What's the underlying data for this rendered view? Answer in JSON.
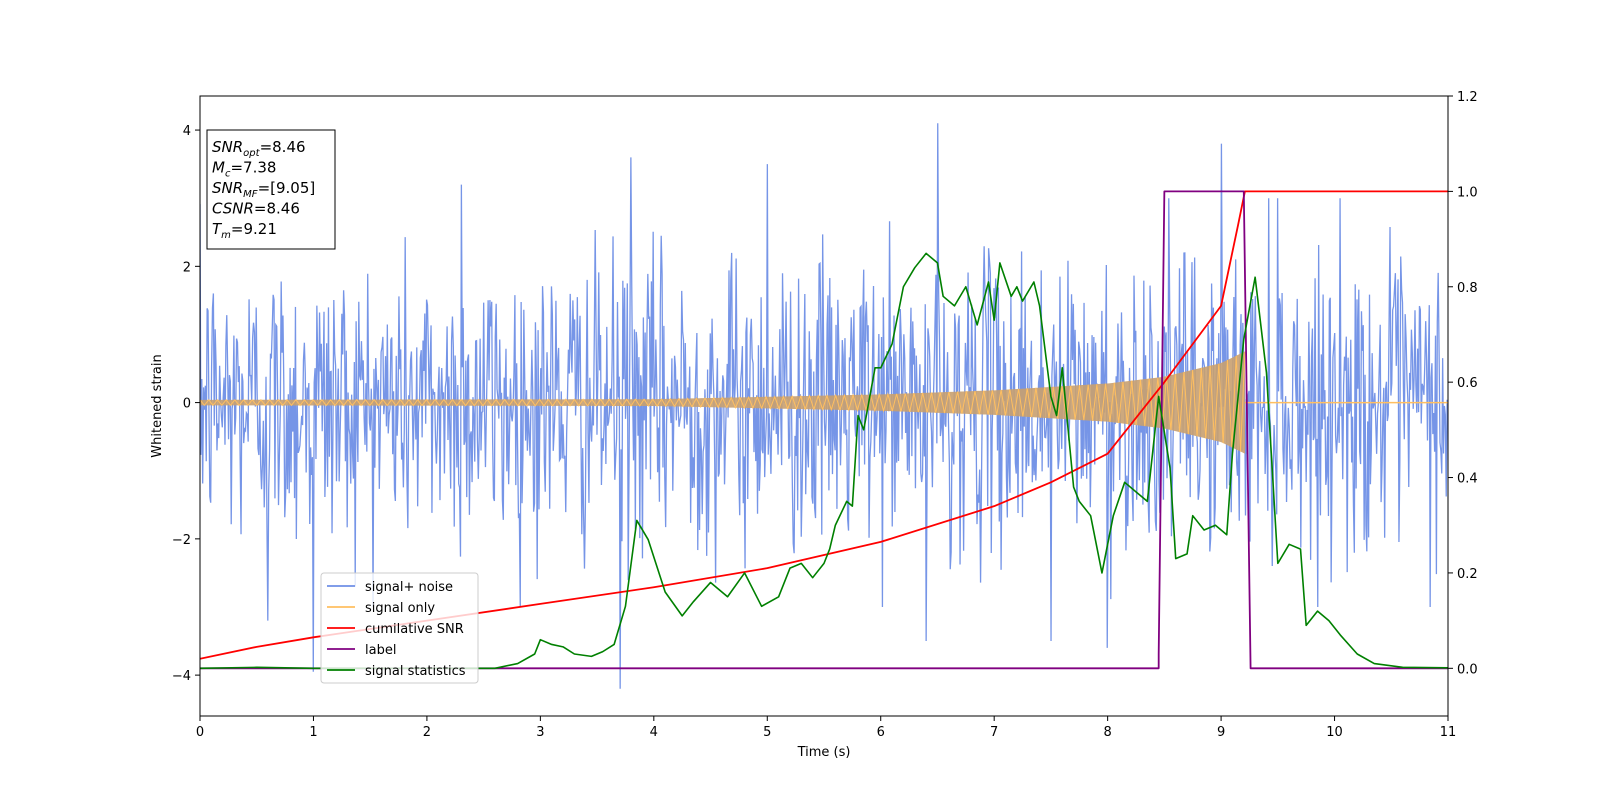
{
  "chart_data": {
    "type": "line",
    "xlabel": "Time (s)",
    "ylabel": "Whitened strain",
    "y2label": "",
    "xlim": [
      0,
      11
    ],
    "ylim": [
      -4.6,
      4.5
    ],
    "y2lim": [
      -0.1,
      1.2
    ],
    "xticks": [
      0,
      1,
      2,
      3,
      4,
      5,
      6,
      7,
      8,
      9,
      10,
      11
    ],
    "yticks": [
      -4,
      -2,
      0,
      2,
      4
    ],
    "y2ticks": [
      "0.0",
      "0.2",
      "0.4",
      "0.6",
      "0.8",
      "1.0",
      "1.2"
    ],
    "grid": false,
    "legend_position": "lower-left",
    "annotation_box": {
      "position": "top-left",
      "lines": [
        {
          "base": "SNR",
          "sub": "opt",
          "value": "=8.46"
        },
        {
          "base": "M",
          "sub": "c",
          "value": "=7.38"
        },
        {
          "base": "SNR",
          "sub": "MF",
          "value": "=[9.05]"
        },
        {
          "base": "CSNR",
          "sub": "",
          "value": "=8.46"
        },
        {
          "base": "T",
          "sub": "m",
          "value": "=9.21"
        }
      ]
    },
    "series": [
      {
        "name": "signal+ noise",
        "color": "#6f8fe6",
        "axis": "left",
        "description_level": "white noise with standard deviation ~1.0 plus chirp signal",
        "noise_sigma": 1.0,
        "sample_count": 1400,
        "peaks": [
          {
            "x": 1.0,
            "y": -3.95
          },
          {
            "x": 3.7,
            "y": -4.2
          },
          {
            "x": 6.5,
            "y": 4.1
          },
          {
            "x": 9.0,
            "y": 3.8
          },
          {
            "x": 2.3,
            "y": 3.2
          },
          {
            "x": 5.0,
            "y": 3.5
          },
          {
            "x": 7.5,
            "y": -3.5
          },
          {
            "x": 8.0,
            "y": -3.6
          },
          {
            "x": 3.8,
            "y": 3.6
          },
          {
            "x": 6.4,
            "y": -3.5
          },
          {
            "x": 9.5,
            "y": 3.0
          },
          {
            "x": 0.6,
            "y": -3.2
          }
        ]
      },
      {
        "name": "signal only",
        "color": "#ffbf60",
        "axis": "left",
        "chirp_end": 9.21,
        "amplitude_points": [
          [
            0,
            0.04
          ],
          [
            4,
            0.05
          ],
          [
            6,
            0.12
          ],
          [
            7,
            0.18
          ],
          [
            8,
            0.28
          ],
          [
            8.5,
            0.38
          ],
          [
            9.0,
            0.58
          ],
          [
            9.21,
            0.75
          ]
        ]
      },
      {
        "name": "cumilative SNR",
        "color": "#ff0000",
        "axis": "right",
        "points": [
          [
            0,
            0.02
          ],
          [
            0.5,
            0.045
          ],
          [
            1,
            0.065
          ],
          [
            2,
            0.1
          ],
          [
            3,
            0.135
          ],
          [
            4,
            0.17
          ],
          [
            5,
            0.21
          ],
          [
            6,
            0.265
          ],
          [
            7,
            0.34
          ],
          [
            7.5,
            0.39
          ],
          [
            8,
            0.45
          ],
          [
            8.5,
            0.6
          ],
          [
            9.0,
            0.76
          ],
          [
            9.15,
            0.93
          ],
          [
            9.21,
            1.0
          ],
          [
            11,
            1.0
          ]
        ]
      },
      {
        "name": "label",
        "color": "#800080",
        "axis": "right",
        "points": [
          [
            0,
            0.0
          ],
          [
            8.45,
            0.0
          ],
          [
            8.45,
            0.03
          ],
          [
            8.5,
            1.0
          ],
          [
            9.2,
            1.0
          ],
          [
            9.26,
            0.0
          ],
          [
            11,
            0.0
          ]
        ]
      },
      {
        "name": "signal statistics",
        "color": "#008000",
        "axis": "right",
        "points": [
          [
            0,
            0.0
          ],
          [
            0.5,
            0.002
          ],
          [
            1,
            0.0
          ],
          [
            2,
            0.0
          ],
          [
            2.6,
            0.0
          ],
          [
            2.8,
            0.01
          ],
          [
            2.95,
            0.03
          ],
          [
            3.0,
            0.06
          ],
          [
            3.1,
            0.05
          ],
          [
            3.2,
            0.045
          ],
          [
            3.3,
            0.03
          ],
          [
            3.45,
            0.025
          ],
          [
            3.55,
            0.035
          ],
          [
            3.65,
            0.05
          ],
          [
            3.75,
            0.13
          ],
          [
            3.85,
            0.31
          ],
          [
            3.95,
            0.27
          ],
          [
            4.1,
            0.16
          ],
          [
            4.25,
            0.11
          ],
          [
            4.35,
            0.14
          ],
          [
            4.5,
            0.18
          ],
          [
            4.65,
            0.15
          ],
          [
            4.8,
            0.2
          ],
          [
            4.95,
            0.13
          ],
          [
            5.1,
            0.15
          ],
          [
            5.2,
            0.21
          ],
          [
            5.3,
            0.22
          ],
          [
            5.4,
            0.19
          ],
          [
            5.5,
            0.22
          ],
          [
            5.55,
            0.25
          ],
          [
            5.6,
            0.3
          ],
          [
            5.7,
            0.35
          ],
          [
            5.75,
            0.34
          ],
          [
            5.8,
            0.53
          ],
          [
            5.85,
            0.5
          ],
          [
            5.95,
            0.63
          ],
          [
            6.0,
            0.63
          ],
          [
            6.1,
            0.68
          ],
          [
            6.2,
            0.8
          ],
          [
            6.3,
            0.84
          ],
          [
            6.4,
            0.87
          ],
          [
            6.5,
            0.85
          ],
          [
            6.55,
            0.78
          ],
          [
            6.65,
            0.76
          ],
          [
            6.75,
            0.8
          ],
          [
            6.85,
            0.72
          ],
          [
            6.95,
            0.81
          ],
          [
            7.0,
            0.73
          ],
          [
            7.05,
            0.85
          ],
          [
            7.15,
            0.78
          ],
          [
            7.2,
            0.8
          ],
          [
            7.25,
            0.77
          ],
          [
            7.35,
            0.81
          ],
          [
            7.4,
            0.76
          ],
          [
            7.5,
            0.57
          ],
          [
            7.55,
            0.53
          ],
          [
            7.6,
            0.63
          ],
          [
            7.7,
            0.38
          ],
          [
            7.75,
            0.35
          ],
          [
            7.85,
            0.32
          ],
          [
            7.95,
            0.2
          ],
          [
            8.05,
            0.32
          ],
          [
            8.15,
            0.39
          ],
          [
            8.25,
            0.37
          ],
          [
            8.35,
            0.35
          ],
          [
            8.45,
            0.57
          ],
          [
            8.55,
            0.42
          ],
          [
            8.6,
            0.23
          ],
          [
            8.7,
            0.24
          ],
          [
            8.75,
            0.32
          ],
          [
            8.85,
            0.29
          ],
          [
            8.95,
            0.3
          ],
          [
            9.05,
            0.28
          ],
          [
            9.1,
            0.45
          ],
          [
            9.2,
            0.69
          ],
          [
            9.3,
            0.82
          ],
          [
            9.4,
            0.62
          ],
          [
            9.5,
            0.22
          ],
          [
            9.6,
            0.26
          ],
          [
            9.7,
            0.25
          ],
          [
            9.75,
            0.09
          ],
          [
            9.85,
            0.12
          ],
          [
            9.95,
            0.1
          ],
          [
            10.05,
            0.07
          ],
          [
            10.2,
            0.03
          ],
          [
            10.35,
            0.01
          ],
          [
            10.6,
            0.002
          ],
          [
            11,
            0.001
          ]
        ]
      }
    ]
  }
}
